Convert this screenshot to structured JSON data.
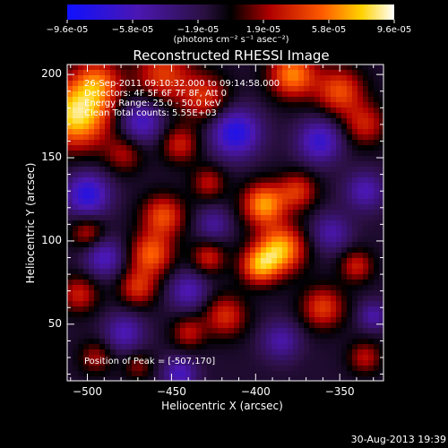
{
  "colorbar": {
    "tick_labels": [
      "-9.6e-05",
      "-5.8e-05",
      "-1.9e-05",
      "1.9e-05",
      "5.8e-05",
      "9.6e-05"
    ],
    "units": "(photons cm⁻² s⁻¹ asec⁻²)",
    "range": [
      -9.6e-05,
      9.6e-05
    ]
  },
  "annotations": {
    "line1": "26-Sep-2011 09:10:32.000 to 09:14:58.000",
    "line2": "Detectors: 4F 5F 6F 7F 8F, Att 0",
    "line3": "Energy Range: 25.0 - 50.0 keV",
    "line4": "Clean    Total counts: 5.55E+03",
    "peak": "Position of Peak = [-507,170]"
  },
  "footer": {
    "date": "30-Aug-2013 19:39"
  },
  "chart_data": {
    "type": "heatmap",
    "title": "Reconstructed RHESSI Image",
    "xlabel": "Heliocentric X (arcsec)",
    "ylabel": "Heliocentric Y (arcsec)",
    "xlim": [
      -512,
      -324
    ],
    "ylim": [
      16,
      206
    ],
    "xticks": [
      -500,
      -450,
      -400,
      -350
    ],
    "yticks": [
      50,
      100,
      150,
      200
    ],
    "colormap": "RHESSI blue-black-red-yellow-white",
    "value_range": [
      -9.6e-05,
      9.6e-05
    ],
    "peak_position": [
      -507,
      170
    ],
    "blobs": [
      {
        "x": -506,
        "y": 176,
        "v": 1.0,
        "s": 14
      },
      {
        "x": -494,
        "y": 196,
        "v": 0.55,
        "s": 10
      },
      {
        "x": -455,
        "y": 200,
        "v": 0.55,
        "s": 12
      },
      {
        "x": -430,
        "y": 186,
        "v": 0.5,
        "s": 10
      },
      {
        "x": -378,
        "y": 200,
        "v": 0.75,
        "s": 10
      },
      {
        "x": -350,
        "y": 190,
        "v": 0.6,
        "s": 10
      },
      {
        "x": -335,
        "y": 170,
        "v": 0.45,
        "s": 9
      },
      {
        "x": -478,
        "y": 152,
        "v": 0.35,
        "s": 8
      },
      {
        "x": -445,
        "y": 158,
        "v": 0.45,
        "s": 8
      },
      {
        "x": -375,
        "y": 130,
        "v": 0.5,
        "s": 8
      },
      {
        "x": -395,
        "y": 122,
        "v": 0.8,
        "s": 9
      },
      {
        "x": -385,
        "y": 95,
        "v": 0.85,
        "s": 10
      },
      {
        "x": -398,
        "y": 85,
        "v": 0.7,
        "s": 8
      },
      {
        "x": -455,
        "y": 115,
        "v": 0.6,
        "s": 9
      },
      {
        "x": -462,
        "y": 92,
        "v": 0.65,
        "s": 9
      },
      {
        "x": -470,
        "y": 72,
        "v": 0.5,
        "s": 8
      },
      {
        "x": -500,
        "y": 105,
        "v": 0.4,
        "s": 7
      },
      {
        "x": -505,
        "y": 68,
        "v": 0.45,
        "s": 8
      },
      {
        "x": -428,
        "y": 135,
        "v": 0.4,
        "s": 7
      },
      {
        "x": -428,
        "y": 90,
        "v": 0.45,
        "s": 7
      },
      {
        "x": -418,
        "y": 55,
        "v": 0.5,
        "s": 9
      },
      {
        "x": -440,
        "y": 45,
        "v": 0.4,
        "s": 7
      },
      {
        "x": -360,
        "y": 60,
        "v": 0.55,
        "s": 9
      },
      {
        "x": -340,
        "y": 85,
        "v": 0.45,
        "s": 7
      },
      {
        "x": -335,
        "y": 30,
        "v": 0.4,
        "s": 7
      },
      {
        "x": -495,
        "y": 30,
        "v": 0.35,
        "s": 7
      },
      {
        "x": -470,
        "y": 25,
        "v": 0.3,
        "s": 6
      },
      {
        "x": -500,
        "y": 128,
        "v": -0.7,
        "s": 9
      },
      {
        "x": -468,
        "y": 172,
        "v": -0.55,
        "s": 9
      },
      {
        "x": -412,
        "y": 165,
        "v": -0.75,
        "s": 10
      },
      {
        "x": -362,
        "y": 160,
        "v": -0.6,
        "s": 9
      },
      {
        "x": -335,
        "y": 130,
        "v": -0.45,
        "s": 8
      },
      {
        "x": -490,
        "y": 90,
        "v": -0.5,
        "s": 8
      },
      {
        "x": -440,
        "y": 70,
        "v": -0.45,
        "s": 8
      },
      {
        "x": -425,
        "y": 110,
        "v": -0.35,
        "s": 7
      },
      {
        "x": -355,
        "y": 105,
        "v": -0.4,
        "s": 8
      },
      {
        "x": -478,
        "y": 45,
        "v": -0.45,
        "s": 8
      },
      {
        "x": -385,
        "y": 40,
        "v": -0.4,
        "s": 8
      },
      {
        "x": -445,
        "y": 20,
        "v": -0.5,
        "s": 7
      },
      {
        "x": -330,
        "y": 55,
        "v": -0.4,
        "s": 6
      }
    ]
  }
}
